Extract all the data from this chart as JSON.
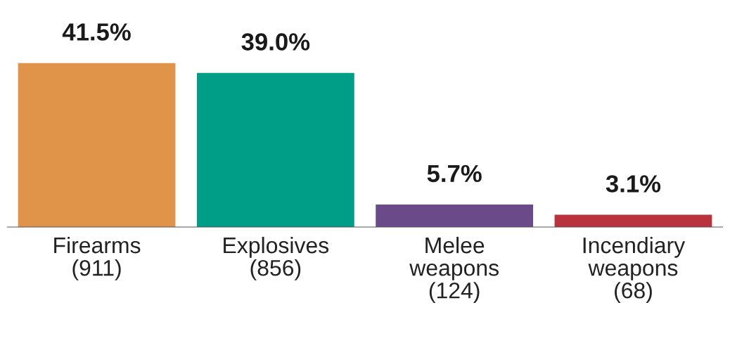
{
  "chart_data": {
    "type": "bar",
    "categories": [
      "Firearms\n(911)",
      "Explosives\n(856)",
      "Melee\nweapons\n(124)",
      "Incendiary\nweapons\n(68)"
    ],
    "values": [
      41.5,
      39.0,
      5.7,
      3.1
    ],
    "colors": [
      "#e0944a",
      "#009e87",
      "#6b4a8a",
      "#b8333d"
    ],
    "value_labels": [
      "41.5%",
      "39.0%",
      "5.7%",
      "3.1%"
    ],
    "grid": false,
    "legend": false
  }
}
